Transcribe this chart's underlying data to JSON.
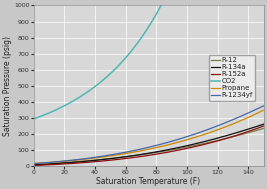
{
  "title": "",
  "xlabel": "Saturation Temperature (F)",
  "ylabel": "Saturation Pressure (psig)",
  "xlim": [
    0,
    150
  ],
  "ylim": [
    0,
    1000
  ],
  "xticks": [
    0,
    20,
    40,
    60,
    80,
    100,
    120,
    140
  ],
  "yticks": [
    0,
    100,
    200,
    300,
    400,
    500,
    600,
    700,
    800,
    900,
    1000
  ],
  "background_color": "#c8c8c8",
  "plot_bg_color": "#d8d8d8",
  "grid_color": "#bbbbbb",
  "series": {
    "R-12": {
      "color": "#7a7a4a",
      "lw": 0.9
    },
    "R-134a": {
      "color": "#111111",
      "lw": 0.9
    },
    "R-152a": {
      "color": "#8b1010",
      "lw": 0.9
    },
    "CO2": {
      "color": "#50b8b0",
      "lw": 1.1
    },
    "Propane": {
      "color": "#cc8800",
      "lw": 0.9
    },
    "R-1234yf": {
      "color": "#4466aa",
      "lw": 0.9
    }
  },
  "T_r12": [
    0,
    20,
    40,
    60,
    80,
    100,
    120,
    140,
    150
  ],
  "P_r12": [
    9.2,
    21.0,
    37.0,
    57.7,
    84.0,
    117.2,
    157.7,
    207.0,
    235.5
  ],
  "T_r134a": [
    0,
    20,
    40,
    60,
    80,
    100,
    120,
    140,
    150
  ],
  "P_r134a": [
    6.0,
    18.8,
    35.7,
    57.6,
    86.3,
    124.3,
    171.8,
    230.0,
    263.0
  ],
  "T_r152a": [
    0,
    20,
    40,
    60,
    80,
    100,
    120,
    140,
    150
  ],
  "P_r152a": [
    3.0,
    12.5,
    26.5,
    46.5,
    73.5,
    109.5,
    156.5,
    215.0,
    248.0
  ],
  "T_co2": [
    0,
    10,
    20,
    30,
    40,
    50,
    60,
    70,
    80,
    85
  ],
  "P_co2": [
    292,
    330,
    375,
    430,
    495,
    575,
    670,
    790,
    945,
    1040
  ],
  "T_propane": [
    0,
    20,
    40,
    60,
    80,
    100,
    120,
    140,
    150
  ],
  "P_propane": [
    15,
    29,
    50,
    77,
    115,
    163,
    225,
    302,
    348
  ],
  "T_1234yf": [
    0,
    20,
    40,
    60,
    80,
    100,
    120,
    140,
    150
  ],
  "P_1234yf": [
    14,
    31,
    55,
    86,
    127,
    180,
    248,
    330,
    378
  ],
  "legend_fontsize": 5.0,
  "axis_fontsize": 5.5,
  "tick_fontsize": 4.5
}
